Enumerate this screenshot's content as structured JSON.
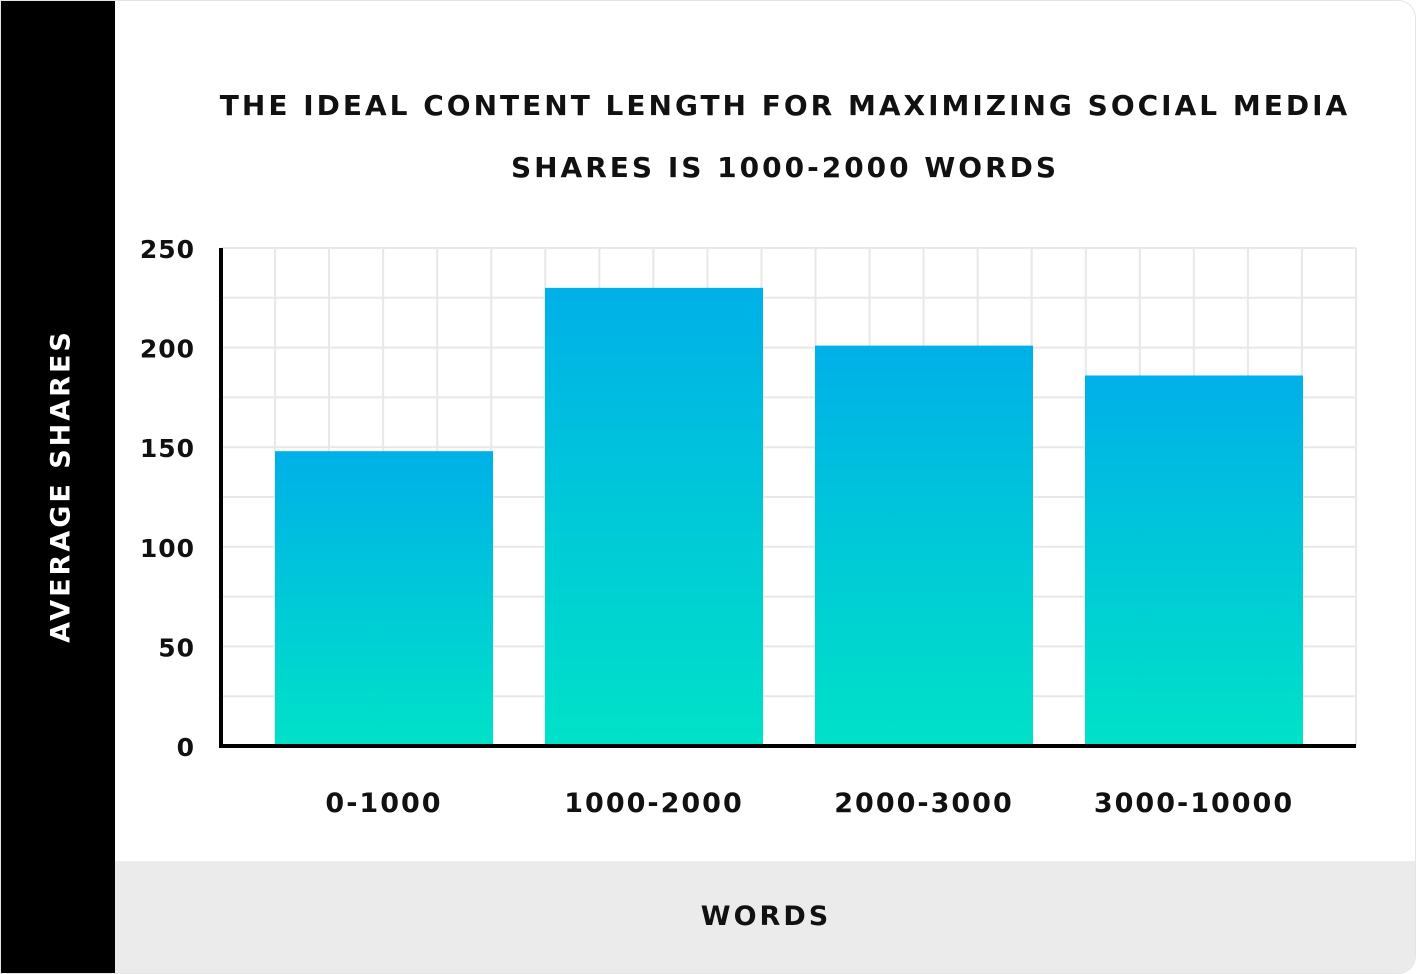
{
  "chart_data": {
    "type": "bar",
    "title": "THE IDEAL CONTENT LENGTH FOR MAXIMIZING SOCIAL MEDIA SHARES IS 1000-2000 WORDS",
    "xlabel": "WORDS",
    "ylabel": "AVERAGE SHARES",
    "categories": [
      "0-1000",
      "1000-2000",
      "2000-3000",
      "3000-10000"
    ],
    "values": [
      148,
      230,
      201,
      186
    ],
    "ylim": [
      0,
      250
    ],
    "yticks": [
      0,
      50,
      100,
      150,
      200,
      250
    ],
    "grid": true,
    "colors": {
      "bar_top": "#00b0e8",
      "bar_bottom": "#00e2c8",
      "grid": "#e8e8e8",
      "axis": "#000000"
    }
  }
}
